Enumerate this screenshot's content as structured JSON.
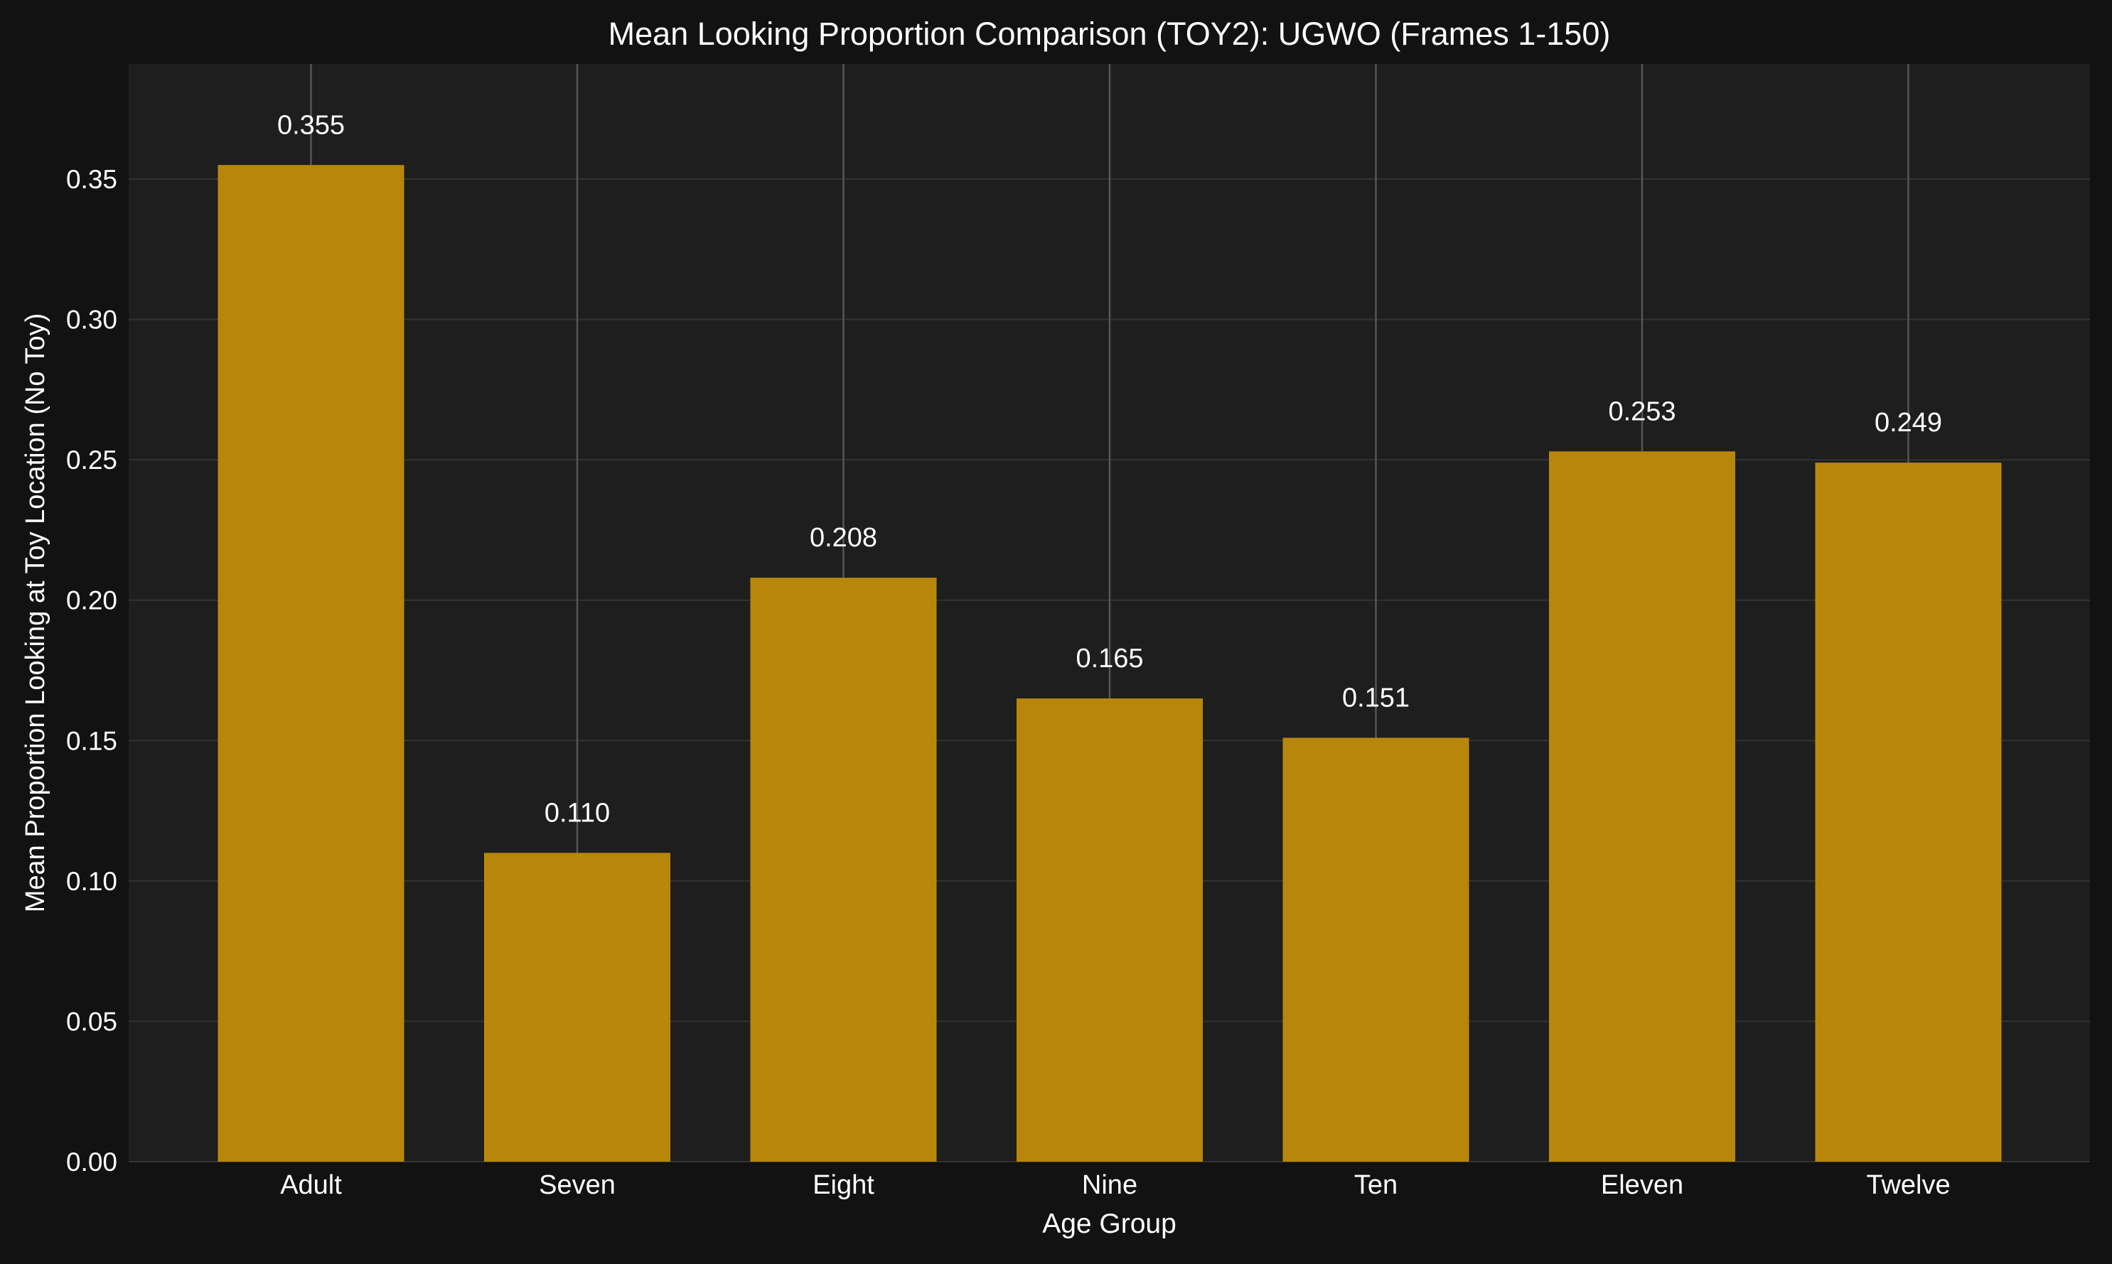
{
  "chart_data": {
    "type": "bar",
    "title": "Mean Looking Proportion Comparison (TOY2): UGWO (Frames 1-150)",
    "xlabel": "Age Group",
    "ylabel": "Mean Proportion Looking at Toy Location (No Toy)",
    "categories": [
      "Adult",
      "Seven",
      "Eight",
      "Nine",
      "Ten",
      "Eleven",
      "Twelve"
    ],
    "values": [
      0.355,
      0.11,
      0.208,
      0.165,
      0.151,
      0.253,
      0.249
    ],
    "value_labels": [
      "0.355",
      "0.110",
      "0.208",
      "0.165",
      "0.151",
      "0.253",
      "0.249"
    ],
    "yticks": [
      "0.00",
      "0.05",
      "0.10",
      "0.15",
      "0.20",
      "0.25",
      "0.30",
      "0.35"
    ],
    "ylim": [
      0,
      0.391
    ],
    "grid": true,
    "error_bars": "upper vertical line from each bar top to the top of the axes",
    "colors": {
      "bar": "#b8860b",
      "figure_background": "#121212",
      "axes_background": "#1e1e1e",
      "grid": "#333333",
      "error_line": "#555555",
      "text": "#ffffff"
    }
  }
}
